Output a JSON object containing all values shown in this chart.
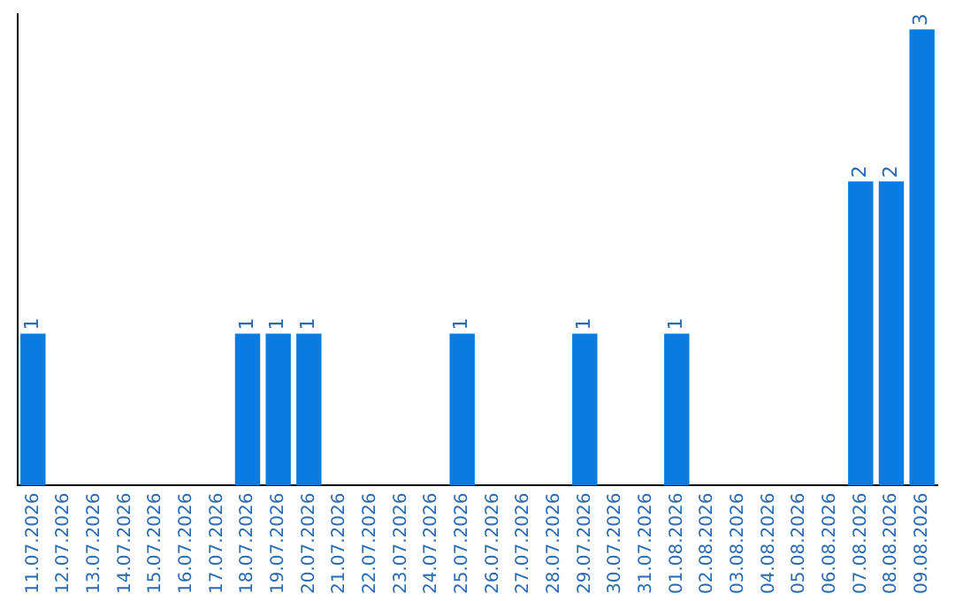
{
  "chart_data": {
    "type": "bar",
    "categories": [
      "11.07.2026",
      "12.07.2026",
      "13.07.2026",
      "14.07.2026",
      "15.07.2026",
      "16.07.2026",
      "17.07.2026",
      "18.07.2026",
      "19.07.2026",
      "20.07.2026",
      "21.07.2026",
      "22.07.2026",
      "23.07.2026",
      "24.07.2026",
      "25.07.2026",
      "26.07.2026",
      "27.07.2026",
      "28.07.2026",
      "29.07.2026",
      "30.07.2026",
      "31.07.2026",
      "01.08.2026",
      "02.08.2026",
      "03.08.2026",
      "04.08.2026",
      "05.08.2026",
      "06.08.2026",
      "07.08.2026",
      "08.08.2026",
      "09.08.2026"
    ],
    "values": [
      1,
      0,
      0,
      0,
      0,
      0,
      0,
      1,
      1,
      1,
      0,
      0,
      0,
      0,
      1,
      0,
      0,
      0,
      1,
      0,
      0,
      1,
      0,
      0,
      0,
      0,
      0,
      2,
      2,
      3
    ],
    "value_labels": [
      "1",
      null,
      null,
      null,
      null,
      null,
      null,
      "1",
      "1",
      "1",
      null,
      null,
      null,
      null,
      "1",
      null,
      null,
      null,
      "1",
      null,
      null,
      "1",
      null,
      null,
      null,
      null,
      null,
      "2",
      "2",
      "3"
    ],
    "color": "#0a7be0",
    "ylim": [
      0,
      3.1
    ],
    "tick_labels": "x",
    "grid": false,
    "legend": false
  }
}
